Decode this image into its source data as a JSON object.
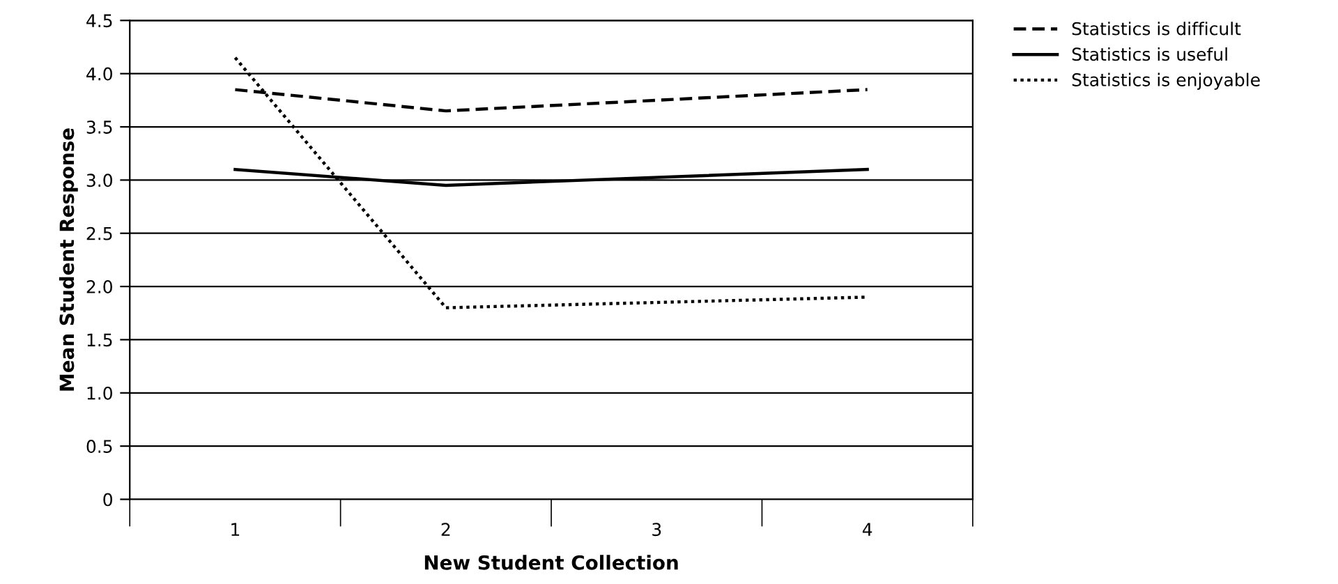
{
  "chart_data": {
    "type": "line",
    "xlabel": "New Student Collection",
    "ylabel": "Mean Student Response",
    "categories": [
      "1",
      "2",
      "3",
      "4"
    ],
    "series": [
      {
        "name": "Statistics is difficult",
        "color": "#000000",
        "line_style": "dashed",
        "values": [
          3.85,
          3.65,
          null,
          3.85
        ]
      },
      {
        "name": "Statistics is useful",
        "color": "#000000",
        "line_style": "solid",
        "values": [
          3.1,
          2.95,
          null,
          3.1
        ]
      },
      {
        "name": "Statistics is enjoyable",
        "color": "#000000",
        "line_style": "dotted",
        "values": [
          4.15,
          1.8,
          null,
          1.9
        ]
      }
    ],
    "ylim": [
      0,
      4.5
    ],
    "yticks": [
      {
        "value": 0,
        "label": "0"
      },
      {
        "value": 0.5,
        "label": "0.5"
      },
      {
        "value": 1,
        "label": "1.0"
      },
      {
        "value": 1.5,
        "label": "1.5"
      },
      {
        "value": 2,
        "label": "2.0"
      },
      {
        "value": 2.5,
        "label": "2.5"
      },
      {
        "value": 3,
        "label": "3.0"
      },
      {
        "value": 3.5,
        "label": "3.5"
      },
      {
        "value": 4,
        "label": "4.0"
      },
      {
        "value": 4.5,
        "label": "4.5"
      }
    ],
    "grid": "y",
    "legend": "top right",
    "marker": "none"
  }
}
